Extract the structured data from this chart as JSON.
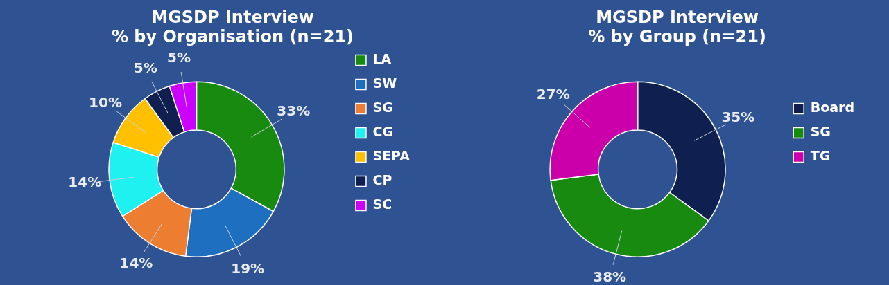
{
  "chart_data": [
    {
      "type": "donut",
      "title": "MGSDP Interview\n% by Organisation (n=21)",
      "categories": [
        "LA",
        "SW",
        "SG",
        "CG",
        "SEPA",
        "CP",
        "SC"
      ],
      "values": [
        33,
        19,
        14,
        14,
        10,
        5,
        5
      ],
      "value_labels": [
        "33%",
        "19%",
        "14%",
        "14%",
        "10%",
        "5%",
        "5%"
      ],
      "colors": [
        "#178a0f",
        "#1f6fc0",
        "#ed7d31",
        "#1ff0f0",
        "#ffc000",
        "#0f1f4f",
        "#cc00ff"
      ],
      "legend": "right"
    },
    {
      "type": "donut",
      "title": "MGSDP Interview\n% by Group (n=21)",
      "categories": [
        "Board",
        "SG",
        "TG"
      ],
      "values": [
        35,
        38,
        27
      ],
      "value_labels": [
        "35%",
        "38%",
        "27%"
      ],
      "colors": [
        "#0f1f50",
        "#178a0f",
        "#cc00aa"
      ],
      "legend": "right"
    }
  ]
}
